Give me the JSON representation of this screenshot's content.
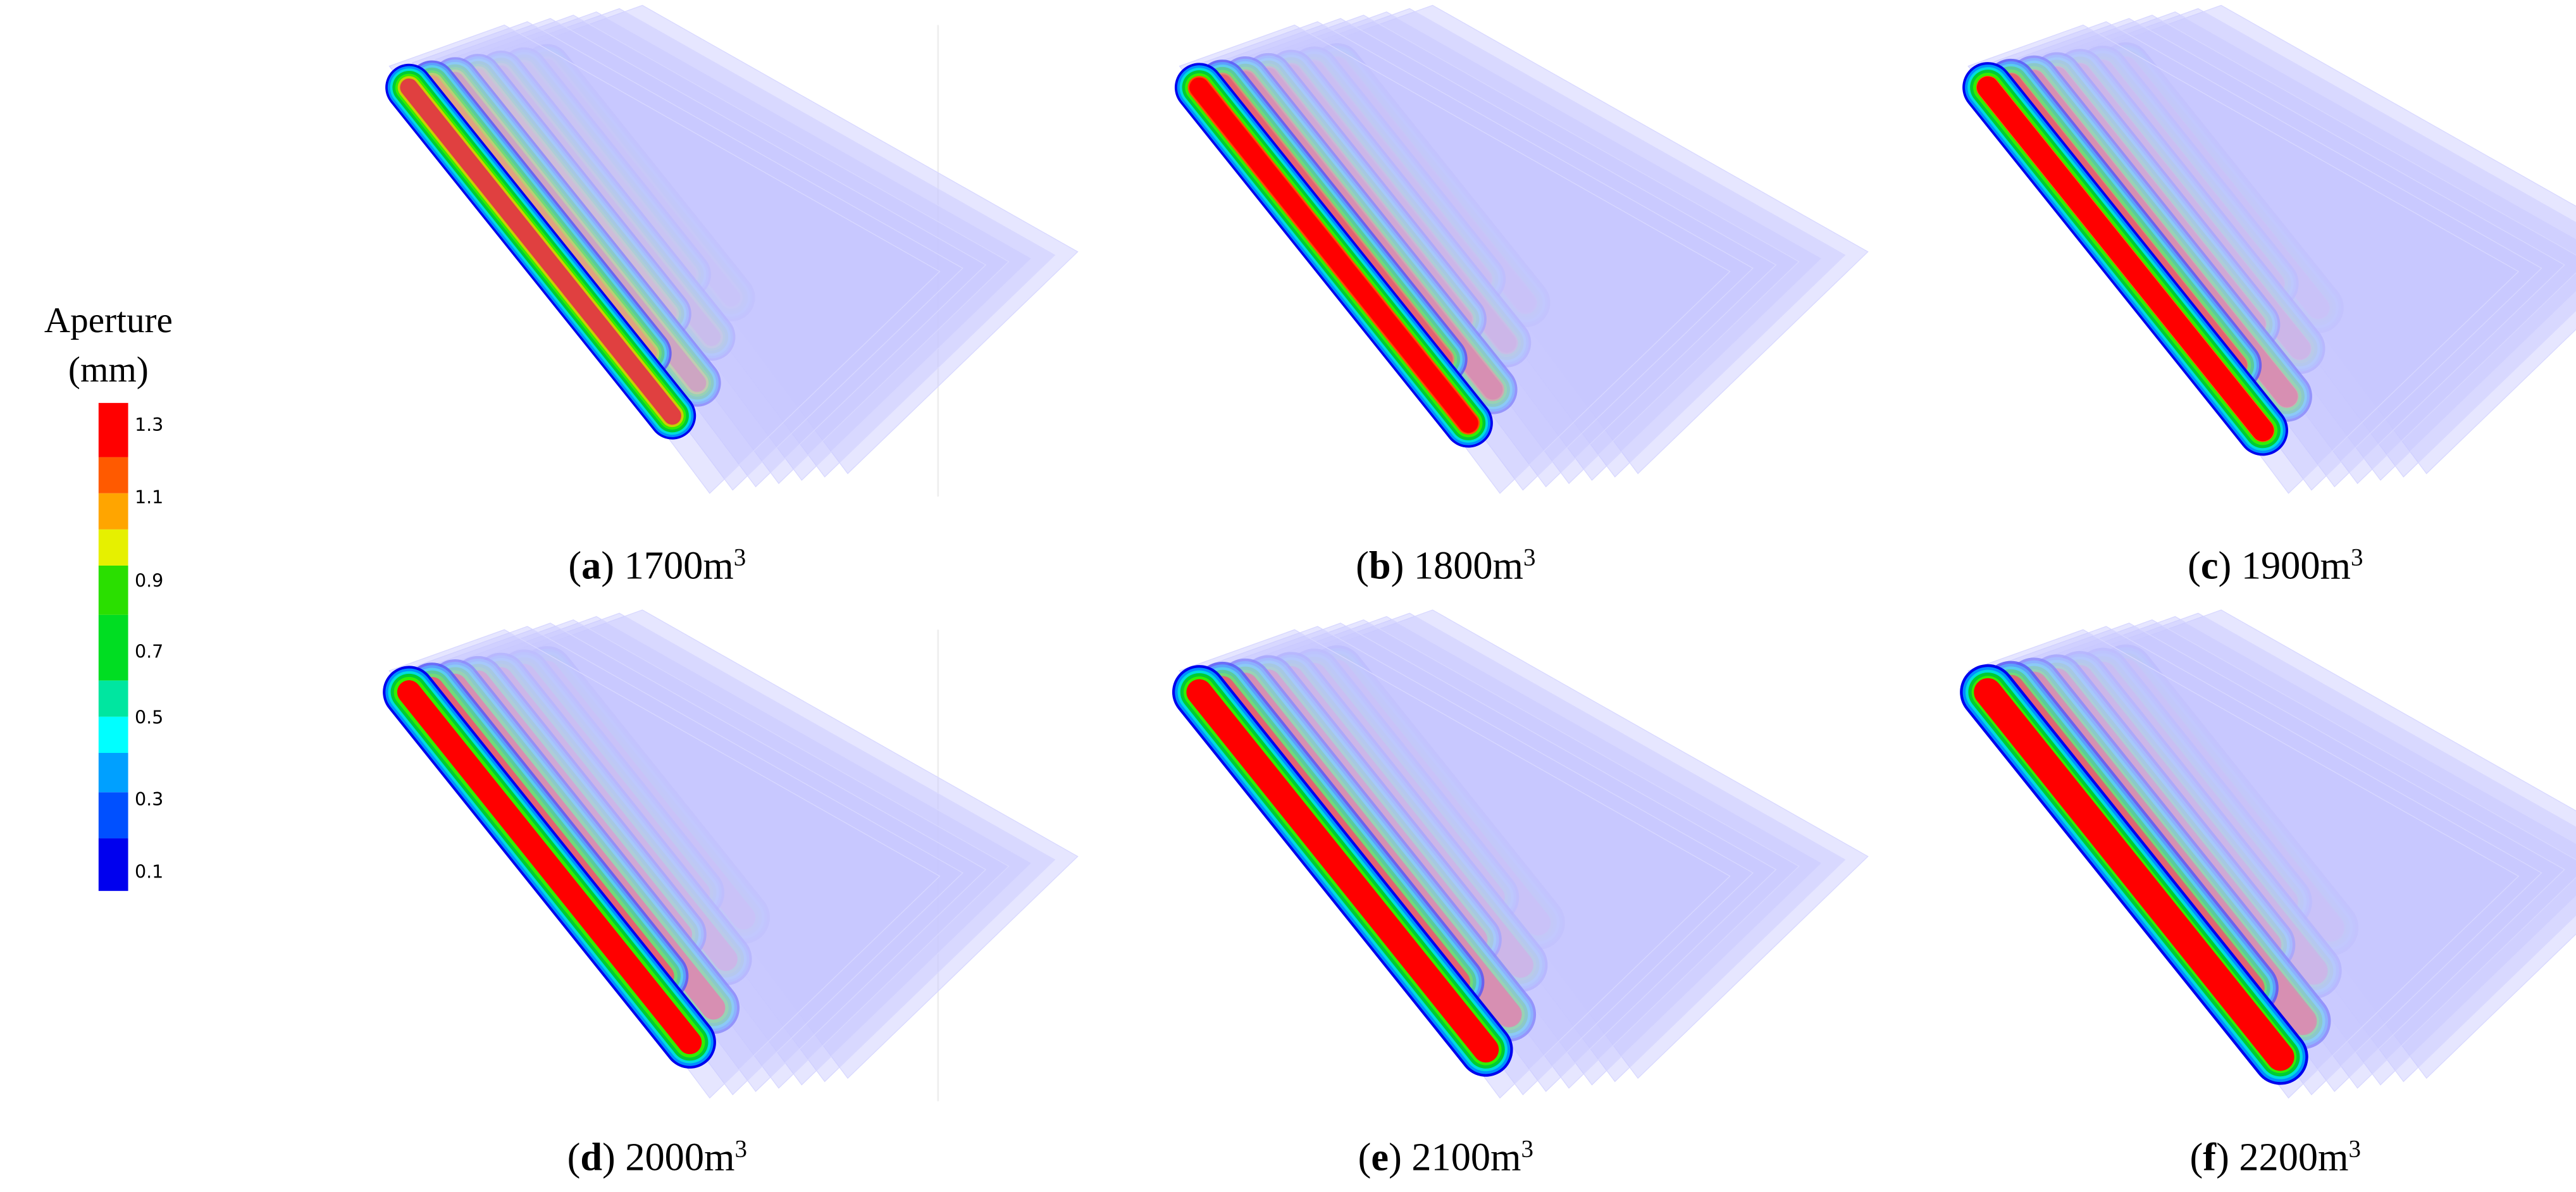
{
  "legend": {
    "title": [
      "Aperture",
      "(mm)"
    ],
    "ticks": [
      "1.3",
      "1.1",
      "0.9",
      "0.7",
      "0.5",
      "0.3",
      "0.1"
    ]
  },
  "panels": [
    {
      "caption": [
        "(",
        "a",
        ") 1700m",
        "3"
      ]
    },
    {
      "caption": [
        "(",
        "b",
        ") 1800m",
        "3"
      ]
    },
    {
      "caption": [
        "(",
        "c",
        ") 1900m",
        "3"
      ]
    },
    {
      "caption": [
        "(",
        "d",
        ") 2000m",
        "3"
      ]
    },
    {
      "caption": [
        "(",
        "e",
        ") 2100m",
        "3"
      ]
    },
    {
      "caption": [
        "(",
        "f",
        ") 2200m",
        "3"
      ]
    }
  ]
}
